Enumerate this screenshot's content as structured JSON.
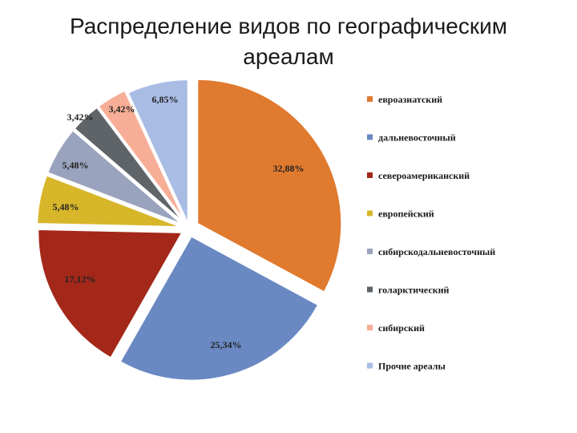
{
  "title_line1": "Распределение видов по географическим",
  "title_line2": "ареалам",
  "chart_data": {
    "type": "pie",
    "title": "Распределение видов по географическим ареалам",
    "categories": [
      "евроазиатский",
      "дальневосточный",
      "североамериканский",
      "европейский",
      "сибирскодальневосточный",
      "голарктический",
      "сибирский",
      "Прочие ареалы"
    ],
    "values": [
      32.88,
      25.34,
      17.12,
      5.48,
      5.48,
      3.42,
      3.42,
      6.85
    ],
    "labels": [
      "32,88%",
      "25,34%",
      "17,12%",
      "5,48%",
      "5,48%",
      "3,42%",
      "3,42%",
      "6,85%"
    ],
    "colors": [
      "#E07A2F",
      "#6A89C3",
      "#A3281A",
      "#D8B62A",
      "#9AA3BD",
      "#5F6468",
      "#F7AE96",
      "#A9BCE4"
    ],
    "legend_position": "right"
  }
}
